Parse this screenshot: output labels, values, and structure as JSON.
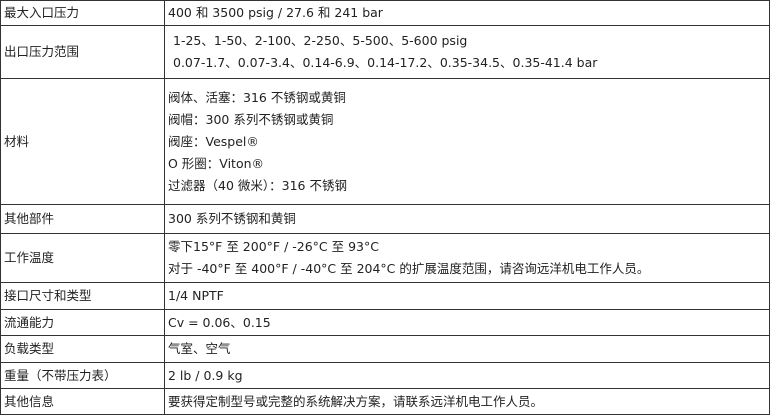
{
  "rows": [
    {
      "label": "最大入口压力",
      "lines": [
        "400 和 3500 psig / 27.6 和 241 bar"
      ]
    },
    {
      "label": "出口压力范围",
      "lines": [
        "1-25、1-50、2-100、2-250、5-500、5-600 psig",
        "0.07-1.7、0.07-3.4、0.14-6.9、0.14-17.2、0.35-34.5、0.35-41.4 bar"
      ]
    },
    {
      "label": "材料",
      "lines": [
        "阀体、活塞：316 不锈钢或黄铜",
        "阀帽：300 系列不锈钢或黄铜",
        "阀座：Vespel®",
        "O 形圈：Viton®",
        "过滤器（40 微米）：316 不锈钢"
      ]
    },
    {
      "label": "其他部件",
      "lines": [
        "300 系列不锈钢和黄铜"
      ]
    },
    {
      "label": "工作温度",
      "lines": [
        "零下15°F 至 200°F / -26°C 至 93°C",
        "对于 -40°F 至 400°F / -40°C 至 204°C 的扩展温度范围，请咨询远洋机电工作人员。"
      ]
    },
    {
      "label": "接口尺寸和类型",
      "lines": [
        "1/4 NPTF"
      ]
    },
    {
      "label": "流通能力",
      "lines": [
        "Cv = 0.06、0.15"
      ]
    },
    {
      "label": "负载类型",
      "lines": [
        "气室、空气"
      ]
    },
    {
      "label": "重量（不带压力表）",
      "lines": [
        "2 lb / 0.9 kg"
      ]
    },
    {
      "label": "其他信息",
      "lines": [
        "要获得定制型号或完整的系统解决方案，请联系远洋机电工作人员。"
      ]
    }
  ]
}
